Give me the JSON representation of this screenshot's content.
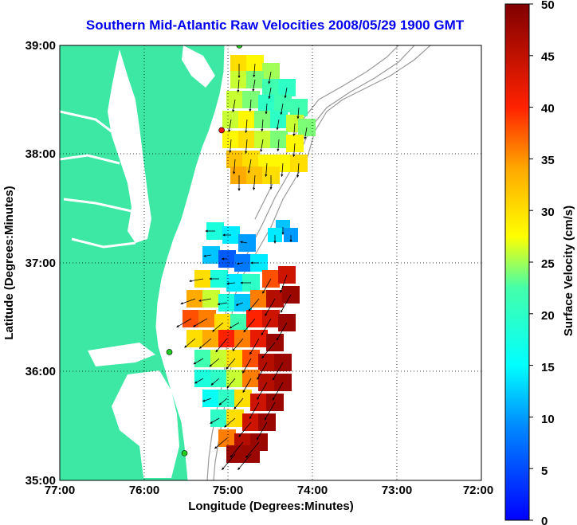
{
  "title": "Southern Mid-Atlantic Raw Velocities 2008/05/29 1900 GMT",
  "map": {
    "xlabel": "Longitude (Degrees:Minutes)",
    "ylabel": "Latitude (Degrees:Minutes)",
    "lon_ticks": [
      "77:00",
      "76:00",
      "75:00",
      "74:00",
      "73:00",
      "72:00"
    ],
    "lat_ticks": [
      "39:00",
      "38:00",
      "37:00",
      "36:00",
      "35:00"
    ],
    "lon_range": [
      -77,
      -72
    ],
    "lat_range": [
      35,
      39
    ],
    "land_color": "#3ce8a4",
    "grid": "dotted"
  },
  "colorbar": {
    "label": "Surface Velocity (cm/s)",
    "ticks": [
      "50",
      "45",
      "40",
      "35",
      "30",
      "25",
      "20",
      "15",
      "10",
      "5",
      "0"
    ],
    "range": [
      0,
      50
    ],
    "colormap": "jet"
  },
  "stations": [
    {
      "lat": 39.0,
      "lon": -74.87,
      "color": "#22cc22"
    },
    {
      "lat": 38.22,
      "lon": -75.08,
      "color": "#ee1111"
    },
    {
      "lat": 36.18,
      "lon": -75.7,
      "color": "#22cc22"
    },
    {
      "lat": 35.25,
      "lon": -75.52,
      "color": "#22cc22"
    }
  ]
}
